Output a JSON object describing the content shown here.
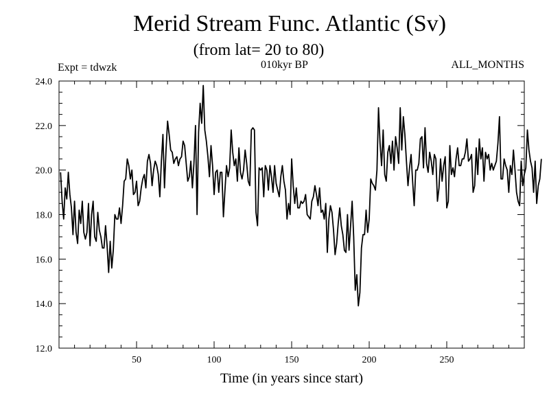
{
  "chart_data": {
    "type": "line",
    "title": "Merid Stream Func. Atlantic (Sv)",
    "subtitle": "(from lat= 20 to 80)",
    "experiment": "Expt = tdwzk",
    "period": "010kyr BP",
    "months": "ALL_MONTHS",
    "xlabel": "Time (in years since start)",
    "ylabel": "",
    "xlim": [
      0,
      300
    ],
    "ylim": [
      12.0,
      24.0
    ],
    "xticks": [
      50,
      100,
      150,
      200,
      250
    ],
    "yticks": [
      "12.0",
      "14.0",
      "16.0",
      "18.0",
      "20.0",
      "22.0",
      "24.0"
    ],
    "grid": false,
    "series": [
      {
        "color": "#000000",
        "x_start": 1,
        "x_step": 1,
        "values": [
          19.9,
          18.6,
          17.8,
          19.2,
          18.7,
          19.9,
          18.9,
          18.3,
          17.1,
          18.6,
          17.2,
          16.7,
          18.2,
          17.6,
          18.6,
          17.2,
          16.9,
          17.2,
          18.5,
          16.6,
          18.0,
          18.6,
          17.0,
          16.8,
          18.1,
          17.3,
          17.0,
          16.5,
          16.5,
          17.5,
          16.6,
          15.4,
          16.8,
          15.6,
          16.4,
          18.0,
          17.8,
          17.8,
          18.3,
          17.6,
          18.4,
          19.5,
          19.6,
          20.5,
          20.2,
          19.6,
          20.0,
          18.9,
          19.0,
          19.5,
          18.4,
          18.6,
          19.2,
          19.6,
          19.8,
          19.2,
          20.4,
          20.7,
          20.3,
          19.3,
          20.0,
          20.4,
          20.2,
          19.8,
          18.8,
          20.4,
          21.6,
          19.2,
          20.9,
          22.2,
          21.6,
          20.9,
          20.8,
          20.3,
          20.5,
          20.6,
          20.2,
          20.5,
          20.6,
          21.3,
          21.1,
          20.3,
          19.5,
          19.7,
          20.4,
          19.2,
          20.3,
          22.0,
          18.0,
          21.7,
          23.0,
          22.1,
          23.8,
          21.8,
          21.3,
          20.6,
          19.7,
          21.1,
          20.2,
          18.9,
          19.9,
          20.0,
          19.0,
          19.9,
          19.9,
          17.9,
          19.1,
          20.2,
          19.7,
          20.1,
          21.8,
          20.8,
          20.2,
          20.5,
          19.5,
          21.0,
          19.9,
          19.6,
          20.0,
          20.9,
          20.3,
          19.5,
          19.3,
          21.8,
          21.9,
          21.8,
          18.1,
          17.5,
          20.1,
          20.0,
          20.1,
          18.8,
          20.2,
          20.0,
          19.1,
          20.2,
          19.7,
          19.0,
          20.2,
          19.4,
          19.1,
          18.8,
          19.7,
          20.2,
          19.5,
          19.1,
          17.8,
          18.5,
          18.0,
          20.5,
          19.3,
          18.5,
          19.2,
          18.3,
          18.3,
          18.6,
          18.5,
          18.6,
          18.9,
          18.0,
          17.9,
          17.8,
          18.6,
          18.8,
          19.3,
          18.9,
          18.4,
          19.2,
          18.1,
          18.2,
          17.8,
          18.5,
          16.3,
          17.8,
          18.4,
          18.1,
          17.3,
          16.2,
          16.7,
          17.6,
          18.3,
          17.5,
          17.1,
          16.4,
          16.3,
          18.0,
          16.4,
          17.5,
          18.6,
          17.0,
          14.6,
          15.3,
          13.9,
          14.5,
          16.5,
          17.1,
          17.1,
          18.2,
          17.2,
          17.8,
          19.6,
          19.4,
          19.3,
          19.1,
          20.0,
          22.8,
          21.2,
          20.2,
          21.8,
          19.8,
          19.5,
          20.8,
          21.1,
          20.3,
          21.3,
          20.0,
          21.5,
          21.0,
          20.3,
          22.8,
          20.9,
          22.4,
          21.6,
          20.4,
          19.3,
          20.1,
          20.7,
          19.5,
          18.4,
          20.0,
          20.0,
          20.3,
          21.4,
          21.5,
          20.1,
          21.9,
          20.3,
          19.9,
          20.8,
          20.4,
          19.8,
          20.7,
          20.5,
          18.6,
          19.2,
          20.5,
          19.5,
          20.2,
          20.6,
          18.3,
          18.6,
          21.1,
          19.8,
          20.1,
          19.7,
          20.5,
          21.0,
          20.2,
          20.2,
          20.5,
          20.5,
          20.8,
          21.4,
          20.4,
          20.5,
          20.7,
          19.0,
          19.3,
          21.0,
          19.8,
          21.4,
          20.5,
          21.0,
          19.5,
          20.8,
          20.5,
          20.7,
          20.0,
          20.3,
          20.0,
          20.2,
          20.4,
          21.2,
          22.4,
          19.6,
          19.6,
          20.5,
          20.2,
          20.0,
          19.0,
          20.2,
          19.8,
          20.9,
          20.0,
          19.0,
          18.6,
          18.4,
          20.4,
          19.3,
          19.8,
          20.1,
          21.8,
          20.9,
          20.4,
          20.1,
          19.0,
          20.4,
          18.5,
          19.3,
          19.6,
          20.5
        ]
      }
    ]
  }
}
